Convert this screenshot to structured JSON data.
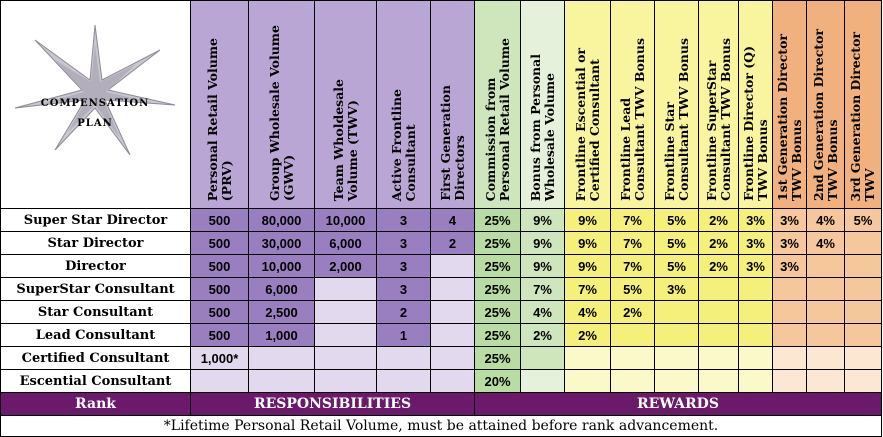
{
  "logo": {
    "line1": "COMPENSATION",
    "line2": "PLAN"
  },
  "headers": [
    "Personal Retail Volume\n(PRV)",
    "Group Wholesale Volume\n(GWV)",
    "Team Wholdesale\nVolume (TWV)",
    "Active Frontline\nConsultant",
    "First Generation\nDirectors",
    "Commission from\nPersonal Retail Volume",
    "Bonus from Personal\nWholesale Volume",
    "Frontline Escential or\nCertified Consultant",
    "Frontline Lead\nConsultant TWV Bonus",
    "Frontline Star\nConsultant TWV Bonus",
    "Frontline SuperStar\nConsultant TWV Bonus",
    "Frontline Director (Q)\nTWV Bonus",
    "1st Generation Director\nTWV Bonus",
    "2nd Generation Director\nTWV Bonus",
    "3rd Generation Director\nTWV"
  ],
  "rows": [
    {
      "rank": "Super Star Director",
      "cells": [
        "500",
        "80,000",
        "10,000",
        "3",
        "4",
        "25%",
        "9%",
        "9%",
        "7%",
        "5%",
        "2%",
        "3%",
        "3%",
        "4%",
        "5%"
      ]
    },
    {
      "rank": "Star Director",
      "cells": [
        "500",
        "30,000",
        "6,000",
        "3",
        "2",
        "25%",
        "9%",
        "9%",
        "7%",
        "5%",
        "2%",
        "3%",
        "3%",
        "4%",
        ""
      ]
    },
    {
      "rank": "Director",
      "cells": [
        "500",
        "10,000",
        "2,000",
        "3",
        "",
        "25%",
        "9%",
        "9%",
        "7%",
        "5%",
        "2%",
        "3%",
        "3%",
        "",
        ""
      ]
    },
    {
      "rank": "SuperStar Consultant",
      "cells": [
        "500",
        "6,000",
        "",
        "3",
        "",
        "25%",
        "7%",
        "7%",
        "5%",
        "3%",
        "",
        "",
        "",
        "",
        ""
      ]
    },
    {
      "rank": "Star Consultant",
      "cells": [
        "500",
        "2,500",
        "",
        "2",
        "",
        "25%",
        "4%",
        "4%",
        "2%",
        "",
        "",
        "",
        "",
        "",
        ""
      ]
    },
    {
      "rank": "Lead Consultant",
      "cells": [
        "500",
        "1,000",
        "",
        "1",
        "",
        "25%",
        "2%",
        "2%",
        "",
        "",
        "",
        "",
        "",
        "",
        ""
      ]
    },
    {
      "rank": "Certified Consultant",
      "cells": [
        "1,000*",
        "",
        "",
        "",
        "",
        "25%",
        "",
        "",
        "",
        "",
        "",
        "",
        "",
        "",
        ""
      ]
    },
    {
      "rank": "Escential Consultant",
      "cells": [
        "",
        "",
        "",
        "",
        "",
        "20%",
        "",
        "",
        "",
        "",
        "",
        "",
        "",
        "",
        ""
      ]
    }
  ],
  "footer": {
    "rank": "Rank",
    "responsibilities": "RESPONSIBILITIES",
    "rewards": "REWARDS"
  },
  "note": "*Lifetime Personal Retail Volume,  must be attained before rank advancement.",
  "colors": {
    "purple_band": "#6b1a6b",
    "purple_header": "#9a7fc0",
    "green": "#b8dca1",
    "yellow": "#f4f07a",
    "orange": "#f0b17e"
  }
}
